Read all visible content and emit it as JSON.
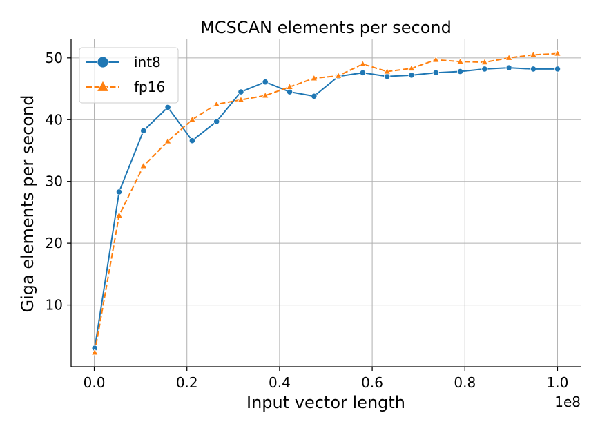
{
  "chart_data": {
    "type": "line",
    "title": "MCSCAN elements per second",
    "xlabel": "Input vector length",
    "ylabel": "Giga elements per second",
    "x_offset_label": "1e8",
    "xlim": [
      -0.05,
      1.05
    ],
    "ylim": [
      0,
      53
    ],
    "grid": true,
    "legend_position": "top-left",
    "x_ticks": [
      0.0,
      0.2,
      0.4,
      0.6,
      0.8,
      1.0
    ],
    "x_tick_labels": [
      "0.0",
      "0.2",
      "0.4",
      "0.6",
      "0.8",
      "1.0"
    ],
    "y_ticks": [
      10,
      20,
      30,
      40,
      50
    ],
    "y_tick_labels": [
      "10",
      "20",
      "30",
      "40",
      "50"
    ],
    "x": [
      0.001,
      0.0536,
      0.1062,
      0.1588,
      0.2114,
      0.264,
      0.3166,
      0.3692,
      0.4218,
      0.4744,
      0.527,
      0.5796,
      0.6322,
      0.6848,
      0.7374,
      0.79,
      0.8426,
      0.8952,
      0.9478,
      1.0
    ],
    "series": [
      {
        "name": "int8",
        "color": "#1f77b4",
        "marker": "circle",
        "line_style": "solid",
        "values": [
          3.0,
          28.3,
          38.2,
          42.0,
          36.6,
          39.7,
          44.5,
          46.1,
          44.5,
          43.8,
          47.0,
          47.6,
          47.0,
          47.2,
          47.6,
          47.8,
          48.2,
          48.4,
          48.2,
          48.2
        ]
      },
      {
        "name": "fp16",
        "color": "#ff7f0e",
        "marker": "triangle",
        "line_style": "dashed",
        "values": [
          2.3,
          24.5,
          32.5,
          36.5,
          40.0,
          42.5,
          43.2,
          43.9,
          45.3,
          46.7,
          47.1,
          49.0,
          47.8,
          48.3,
          49.7,
          49.4,
          49.3,
          50.0,
          50.5,
          50.7
        ]
      }
    ]
  }
}
